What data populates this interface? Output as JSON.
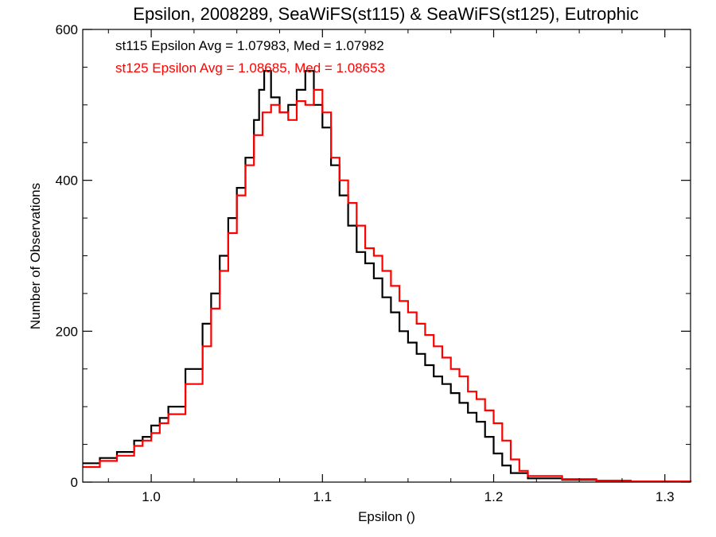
{
  "chart_data": {
    "type": "line",
    "title": "Epsilon, 2008289, SeaWiFS(st115) & SeaWiFS(st125), Eutrophic",
    "xlabel": "Epsilon ()",
    "ylabel": "Number of Observations",
    "xlim": [
      0.96,
      1.315
    ],
    "ylim": [
      0,
      600
    ],
    "xticks": [
      1.0,
      1.1,
      1.2,
      1.3
    ],
    "xtick_labels": [
      "1.0",
      "1.1",
      "1.2",
      "1.3"
    ],
    "yticks": [
      0,
      200,
      400,
      600
    ],
    "ytick_labels": [
      "0",
      "200",
      "400",
      "600"
    ],
    "grid": false,
    "step": true,
    "stats": [
      {
        "text": "st115 Epsilon Avg = 1.07983, Med = 1.07982",
        "color": "#000000"
      },
      {
        "text": "st125 Epsilon Avg = 1.08685, Med = 1.08653",
        "color": "#ff0000"
      }
    ],
    "series": [
      {
        "color": "#000000",
        "x": [
          0.96,
          0.97,
          0.98,
          0.99,
          0.995,
          1.0,
          1.005,
          1.01,
          1.02,
          1.03,
          1.035,
          1.04,
          1.045,
          1.05,
          1.055,
          1.06,
          1.063,
          1.066,
          1.07,
          1.075,
          1.08,
          1.085,
          1.09,
          1.095,
          1.1,
          1.105,
          1.11,
          1.115,
          1.12,
          1.125,
          1.13,
          1.135,
          1.14,
          1.145,
          1.15,
          1.155,
          1.16,
          1.165,
          1.17,
          1.175,
          1.18,
          1.185,
          1.19,
          1.195,
          1.2,
          1.205,
          1.21,
          1.22,
          1.24,
          1.26,
          1.28,
          1.3,
          1.315
        ],
        "y": [
          25,
          32,
          40,
          55,
          60,
          75,
          85,
          100,
          150,
          210,
          250,
          300,
          350,
          390,
          430,
          480,
          520,
          545,
          510,
          490,
          500,
          520,
          545,
          500,
          470,
          420,
          380,
          340,
          305,
          290,
          270,
          245,
          225,
          200,
          185,
          170,
          155,
          140,
          130,
          118,
          105,
          92,
          80,
          60,
          38,
          22,
          12,
          5,
          3,
          2,
          1,
          1,
          0
        ]
      },
      {
        "color": "#ff0000",
        "x": [
          0.96,
          0.97,
          0.98,
          0.99,
          0.995,
          1.0,
          1.005,
          1.01,
          1.02,
          1.03,
          1.035,
          1.04,
          1.045,
          1.05,
          1.055,
          1.06,
          1.065,
          1.07,
          1.075,
          1.08,
          1.085,
          1.09,
          1.095,
          1.1,
          1.105,
          1.11,
          1.115,
          1.12,
          1.125,
          1.13,
          1.135,
          1.14,
          1.145,
          1.15,
          1.155,
          1.16,
          1.165,
          1.17,
          1.175,
          1.18,
          1.185,
          1.19,
          1.195,
          1.2,
          1.205,
          1.21,
          1.215,
          1.22,
          1.24,
          1.26,
          1.28,
          1.3,
          1.315
        ],
        "y": [
          20,
          28,
          35,
          48,
          55,
          65,
          78,
          90,
          130,
          180,
          230,
          280,
          330,
          380,
          420,
          460,
          490,
          500,
          490,
          480,
          505,
          500,
          520,
          490,
          430,
          400,
          370,
          340,
          310,
          300,
          280,
          260,
          240,
          225,
          210,
          195,
          180,
          165,
          150,
          140,
          120,
          110,
          95,
          78,
          55,
          30,
          15,
          8,
          4,
          2,
          1,
          1,
          0
        ]
      }
    ]
  }
}
